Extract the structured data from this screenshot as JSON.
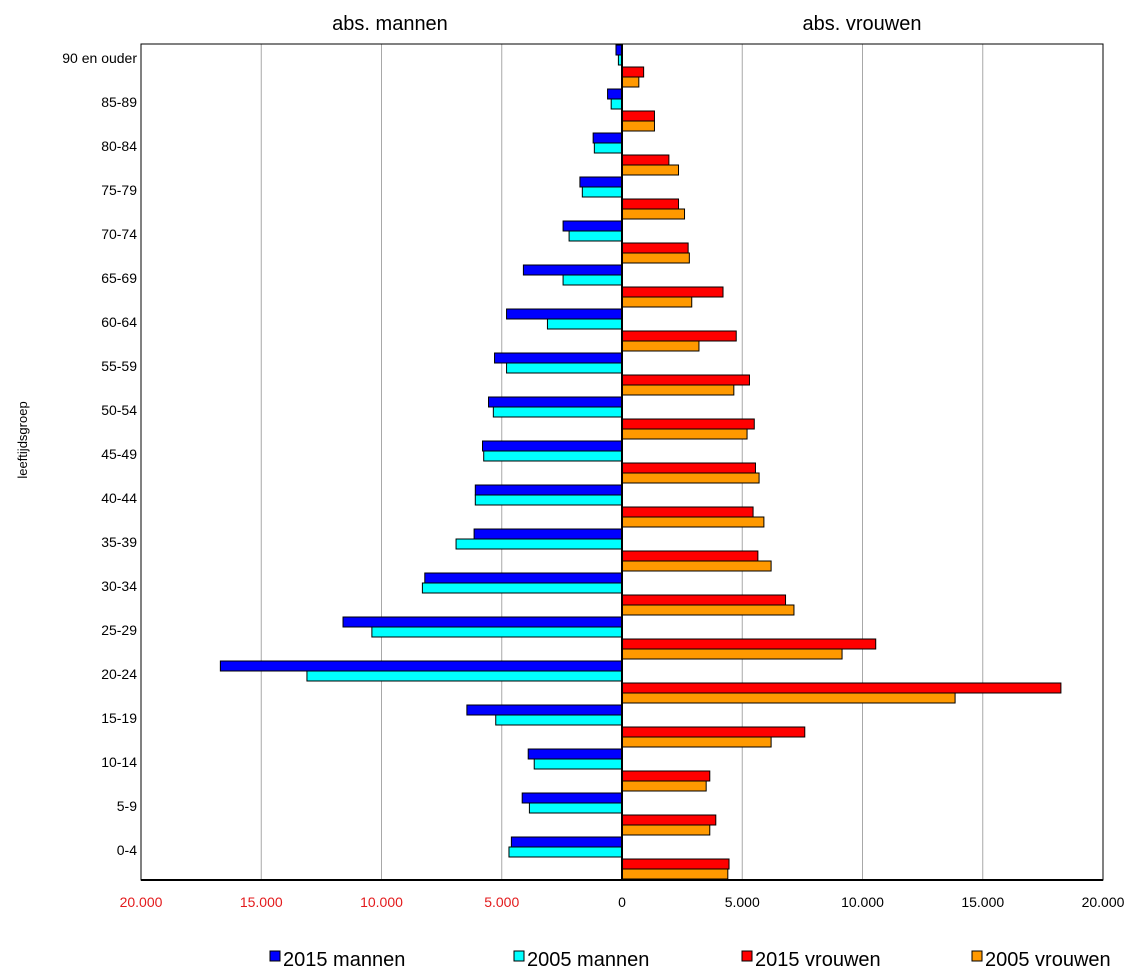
{
  "chart_data": {
    "type": "bar",
    "orientation": "horizontal-population-pyramid",
    "section_titles": {
      "left": "abs. mannen",
      "right": "abs. vrouwen"
    },
    "ylabel": "leeftijdsgroep",
    "categories": [
      "0-4",
      "5-9",
      "10-14",
      "15-19",
      "20-24",
      "25-29",
      "30-34",
      "35-39",
      "40-44",
      "45-49",
      "50-54",
      "55-59",
      "60-64",
      "65-69",
      "70-74",
      "75-79",
      "80-84",
      "85-89",
      "90 en ouder"
    ],
    "xlim": [
      -20000,
      20000
    ],
    "x_ticks": [
      -20000,
      -15000,
      -10000,
      -5000,
      0,
      5000,
      10000,
      15000,
      20000
    ],
    "x_tick_labels": [
      "20.000",
      "15.000",
      "10.000",
      "5.000",
      "0",
      "5.000",
      "10.000",
      "15.000",
      "20.000"
    ],
    "colors": {
      "negative_tick_labels": "#e31a1c",
      "positive_tick_labels": "#000000"
    },
    "grid": true,
    "legend_position": "bottom",
    "series": [
      {
        "name": "2015 mannen",
        "side": "left",
        "color": "#0000ff",
        "values": [
          4600,
          4150,
          3900,
          6450,
          16700,
          11600,
          8200,
          6150,
          6100,
          5800,
          5550,
          5300,
          4800,
          4100,
          2450,
          1750,
          1200,
          600,
          250
        ]
      },
      {
        "name": "2005 mannen",
        "side": "left",
        "color": "#00ffff",
        "values": [
          4700,
          3850,
          3650,
          5250,
          13100,
          10400,
          8300,
          6900,
          6100,
          5750,
          5350,
          4800,
          3100,
          2450,
          2200,
          1650,
          1150,
          450,
          150
        ]
      },
      {
        "name": "2015 vrouwen",
        "side": "right",
        "color": "#ff0000",
        "values": [
          4450,
          3900,
          3650,
          7600,
          18250,
          10550,
          6800,
          5650,
          5450,
          5550,
          5500,
          5300,
          4750,
          4200,
          2750,
          2350,
          1950,
          1350,
          900
        ]
      },
      {
        "name": "2005 vrouwen",
        "side": "right",
        "color": "#ff9900",
        "values": [
          4400,
          3650,
          3500,
          6200,
          13850,
          9150,
          7150,
          6200,
          5900,
          5700,
          5200,
          4650,
          3200,
          2900,
          2800,
          2600,
          2350,
          1350,
          700
        ]
      }
    ]
  }
}
